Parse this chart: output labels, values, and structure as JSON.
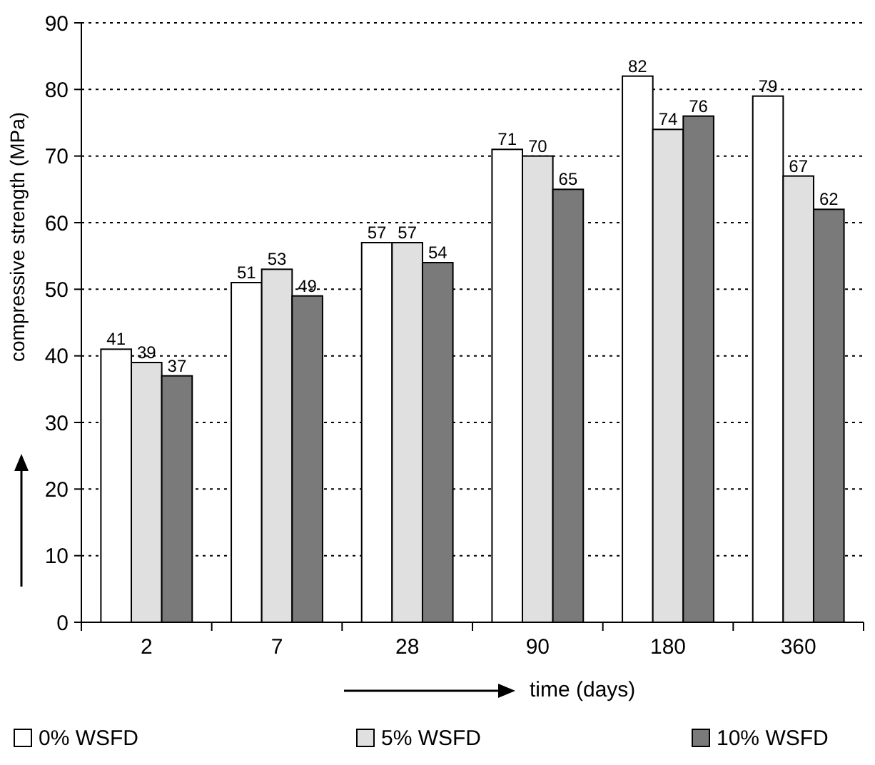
{
  "chart_data": {
    "type": "bar",
    "xlabel": "time (days)",
    "ylabel": "compressive strength (MPa)",
    "categories": [
      "2",
      "7",
      "28",
      "90",
      "180",
      "360"
    ],
    "series": [
      {
        "name": "0% WSFD",
        "color": "#ffffff",
        "values": [
          41,
          51,
          57,
          71,
          82,
          79
        ]
      },
      {
        "name": "5% WSFD",
        "color": "#e0e0e0",
        "values": [
          39,
          53,
          57,
          70,
          74,
          67
        ]
      },
      {
        "name": "10% WSFD",
        "color": "#7a7a7a",
        "values": [
          37,
          49,
          54,
          65,
          76,
          62
        ]
      }
    ],
    "ylim": [
      0,
      90
    ],
    "yticks": [
      0,
      10,
      20,
      30,
      40,
      50,
      60,
      70,
      80,
      90
    ],
    "grid": "y",
    "legend": "bottom",
    "data_labels": true
  }
}
